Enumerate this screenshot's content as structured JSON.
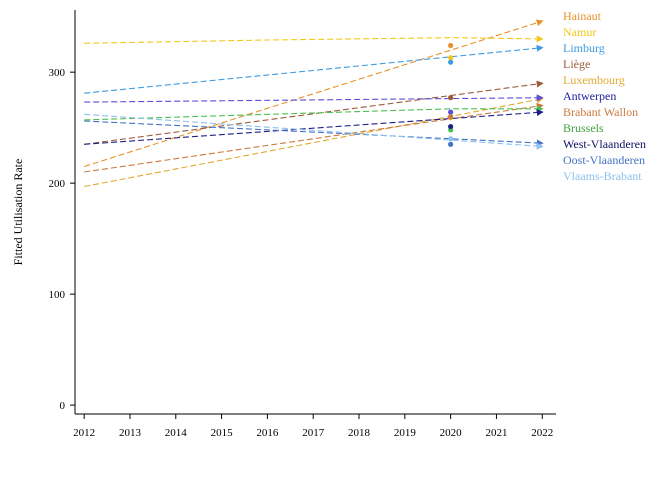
{
  "chart_data": {
    "type": "line",
    "title": "",
    "xlabel": "",
    "ylabel": "Fitted Utilisation Rate",
    "xlim": [
      2011.8,
      2022.3
    ],
    "ylim": [
      -8,
      356
    ],
    "x_ticks": [
      2012,
      2013,
      2014,
      2015,
      2016,
      2017,
      2018,
      2019,
      2020,
      2021,
      2022
    ],
    "y_ticks": [
      0,
      100,
      200,
      300
    ],
    "grid": false,
    "legend_placement": "right",
    "series": [
      {
        "name": "Hainaut",
        "color": "#E8912B",
        "x": [
          2012,
          2022
        ],
        "y": [
          215,
          346
        ],
        "observed": {
          "x": 2020,
          "y": 324
        }
      },
      {
        "name": "Namur",
        "color": "#F2C81C",
        "x": [
          2012,
          2016,
          2020,
          2022
        ],
        "y": [
          326,
          329,
          331,
          330
        ],
        "observed": {
          "x": 2020,
          "y": 313
        }
      },
      {
        "name": "Limburg",
        "color": "#3D9BE0",
        "x": [
          2012,
          2022
        ],
        "y": [
          281,
          322
        ],
        "observed": {
          "x": 2020,
          "y": 309
        }
      },
      {
        "name": "Liège",
        "color": "#9C5A3C",
        "x": [
          2012,
          2022
        ],
        "y": [
          235,
          290
        ],
        "observed": {
          "x": 2020,
          "y": 277
        }
      },
      {
        "name": "Luxembourg",
        "color": "#E3A832",
        "x": [
          2012,
          2022
        ],
        "y": [
          197,
          276
        ],
        "observed": {
          "x": 2020,
          "y": 259
        }
      },
      {
        "name": "Antwerpen",
        "color": "#5A4FD6",
        "x": [
          2012,
          2022
        ],
        "y": [
          273,
          277
        ],
        "observed": {
          "x": 2020,
          "y": 264
        }
      },
      {
        "name": "Brabant Wallon",
        "color": "#CC7A3E",
        "x": [
          2012,
          2022
        ],
        "y": [
          210,
          270
        ],
        "observed": {
          "x": 2020,
          "y": 260
        }
      },
      {
        "name": "Brussels",
        "color": "#4DBF4D",
        "x": [
          2012,
          2020,
          2022
        ],
        "y": [
          257,
          267,
          267
        ],
        "observed": {
          "x": 2020,
          "y": 248
        }
      },
      {
        "name": "West-Vlaanderen",
        "color": "#1F1F8A",
        "x": [
          2012,
          2022
        ],
        "y": [
          235,
          264
        ],
        "observed": {
          "x": 2020,
          "y": 251
        }
      },
      {
        "name": "Oost-Vlaanderen",
        "color": "#4472C4",
        "x": [
          2012,
          2022
        ],
        "y": [
          256,
          236
        ],
        "observed": {
          "x": 2020,
          "y": 235
        }
      },
      {
        "name": "Vlaams-Brabant",
        "color": "#8EC1EC",
        "x": [
          2012,
          2022
        ],
        "y": [
          262,
          233
        ],
        "observed": {
          "x": 2020,
          "y": 240
        }
      }
    ],
    "legend_text_colors": [
      "#E8912B",
      "#F2C81C",
      "#3D9BE0",
      "#9C5A3C",
      "#E3A832",
      "#2020A0",
      "#CC7A3E",
      "#3FA33F",
      "#111166",
      "#4472C4",
      "#8EC1EC"
    ]
  }
}
